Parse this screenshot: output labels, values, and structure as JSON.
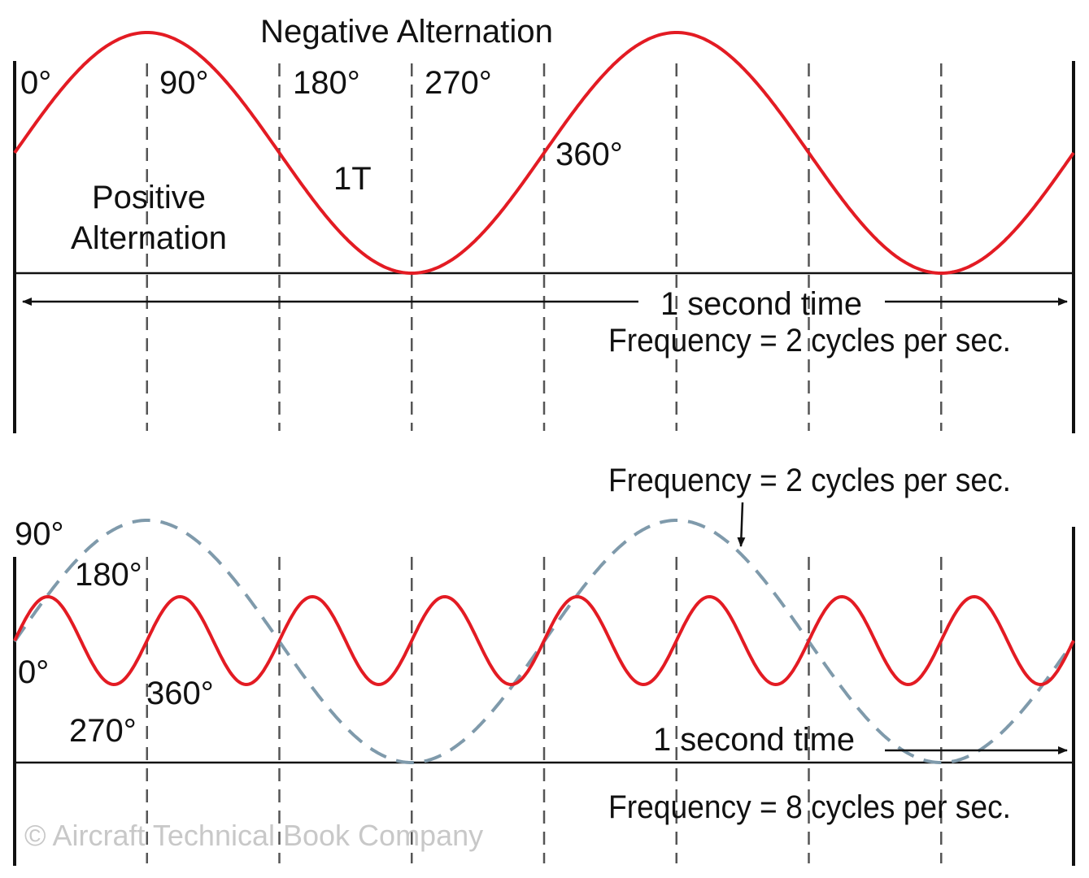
{
  "watermark": "© Aircraft Technical Book Company",
  "top": {
    "title": "Negative Alternation",
    "deg0": "0°",
    "deg90": "90°",
    "deg180": "180°",
    "deg270": "270°",
    "deg360": "360°",
    "period_label": "1T",
    "positive_line1": "Positive",
    "positive_line2": "Alternation",
    "time_label": "1 second time",
    "frequency_label": "Frequency = 2 cycles per sec.",
    "cycles": 2
  },
  "bottom": {
    "frequency_top_label": "Frequency = 2 cycles per sec.",
    "deg90": "90°",
    "deg180": "180°",
    "deg0": "0°",
    "deg360": "360°",
    "deg270": "270°",
    "time_label": "1 second time",
    "frequency_label": "Frequency = 8 cycles per sec.",
    "slow_cycles": 2,
    "fast_cycles": 8
  },
  "colors": {
    "wave": "#e31b23",
    "dashed_wave": "#7f9aab",
    "grid": "#555555",
    "axis": "#111111"
  }
}
